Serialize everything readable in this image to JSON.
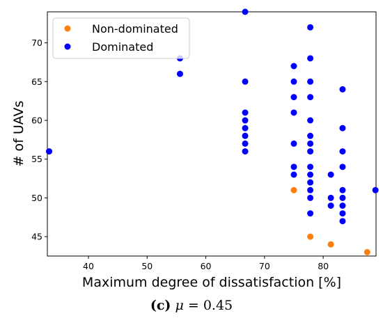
{
  "chart_data": {
    "type": "scatter",
    "title": "",
    "xlabel": "Maximum degree of dissatisfaction [%]",
    "ylabel": "# of UAVs",
    "xlim": [
      33,
      89
    ],
    "ylim": [
      42.5,
      74
    ],
    "xticks": [
      40,
      50,
      60,
      70,
      80
    ],
    "yticks": [
      45,
      50,
      55,
      60,
      65,
      70
    ],
    "grid": false,
    "legend_position": "top-left",
    "series": [
      {
        "name": "Non-dominated",
        "color": "#ff7f0e",
        "points": [
          {
            "x": 33.3,
            "y": 56
          },
          {
            "x": 75.0,
            "y": 51
          },
          {
            "x": 77.8,
            "y": 45
          },
          {
            "x": 81.3,
            "y": 44
          },
          {
            "x": 87.5,
            "y": 43
          }
        ]
      },
      {
        "name": "Dominated",
        "color": "#0000ff",
        "points": [
          {
            "x": 33.3,
            "y": 56
          },
          {
            "x": 55.6,
            "y": 68
          },
          {
            "x": 55.6,
            "y": 66
          },
          {
            "x": 66.7,
            "y": 74
          },
          {
            "x": 66.7,
            "y": 65
          },
          {
            "x": 66.7,
            "y": 61
          },
          {
            "x": 66.7,
            "y": 60
          },
          {
            "x": 66.7,
            "y": 59
          },
          {
            "x": 66.7,
            "y": 58
          },
          {
            "x": 66.7,
            "y": 57
          },
          {
            "x": 66.7,
            "y": 56
          },
          {
            "x": 75.0,
            "y": 67
          },
          {
            "x": 75.0,
            "y": 65
          },
          {
            "x": 75.0,
            "y": 63
          },
          {
            "x": 75.0,
            "y": 61
          },
          {
            "x": 75.0,
            "y": 57
          },
          {
            "x": 75.0,
            "y": 54
          },
          {
            "x": 75.0,
            "y": 53
          },
          {
            "x": 77.8,
            "y": 72
          },
          {
            "x": 77.8,
            "y": 68
          },
          {
            "x": 77.8,
            "y": 65
          },
          {
            "x": 77.8,
            "y": 63
          },
          {
            "x": 77.8,
            "y": 60
          },
          {
            "x": 77.8,
            "y": 58
          },
          {
            "x": 77.8,
            "y": 57
          },
          {
            "x": 77.8,
            "y": 56
          },
          {
            "x": 77.8,
            "y": 54
          },
          {
            "x": 77.8,
            "y": 53
          },
          {
            "x": 77.8,
            "y": 52
          },
          {
            "x": 77.8,
            "y": 51
          },
          {
            "x": 77.8,
            "y": 50
          },
          {
            "x": 77.8,
            "y": 48
          },
          {
            "x": 81.3,
            "y": 53
          },
          {
            "x": 81.3,
            "y": 50
          },
          {
            "x": 81.3,
            "y": 49
          },
          {
            "x": 83.3,
            "y": 64
          },
          {
            "x": 83.3,
            "y": 59
          },
          {
            "x": 83.3,
            "y": 56
          },
          {
            "x": 83.3,
            "y": 54
          },
          {
            "x": 83.3,
            "y": 51
          },
          {
            "x": 83.3,
            "y": 50
          },
          {
            "x": 83.3,
            "y": 49
          },
          {
            "x": 83.3,
            "y": 48
          },
          {
            "x": 83.3,
            "y": 47
          },
          {
            "x": 88.9,
            "y": 51
          }
        ]
      }
    ]
  },
  "caption": {
    "label": "(c)",
    "symbol": "μ",
    "equals": "=",
    "value": "0.45"
  }
}
